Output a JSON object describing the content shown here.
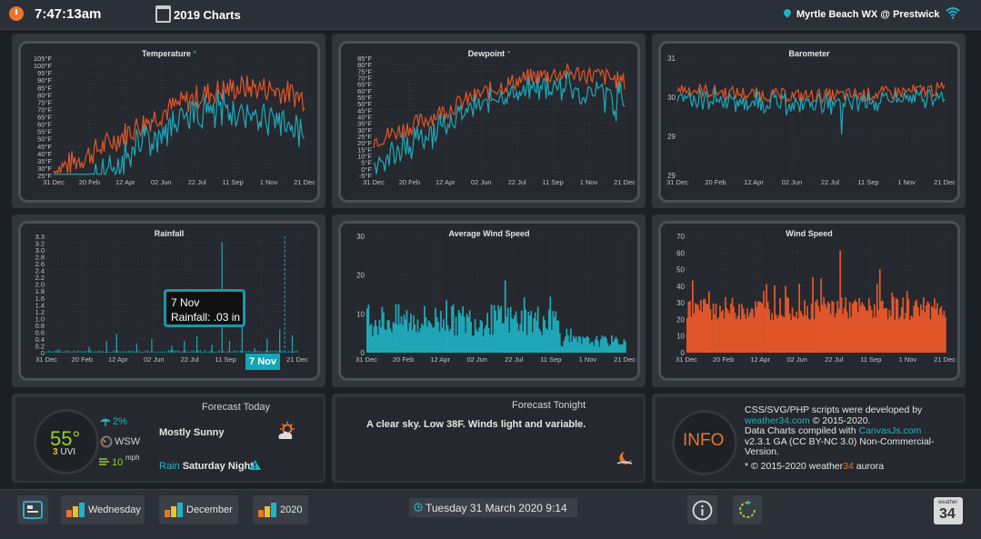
{
  "header": {
    "time": "7:47:13am",
    "title": "2019 Charts",
    "station": "Myrtle Beach WX @ Prestwick"
  },
  "charts": [
    {
      "id": "temperature",
      "title": "Temperature",
      "title_suffix": "°",
      "yticks": [
        "105°F",
        "100°F",
        "95°F",
        "90°F",
        "85°F",
        "80°F",
        "75°F",
        "70°F",
        "65°F",
        "60°F",
        "55°F",
        "50°F",
        "45°F",
        "40°F",
        "35°F",
        "30°F",
        "25°F"
      ],
      "xticks": [
        "31 Dec",
        "20 Feb",
        "12 Apr",
        "02 Jun",
        "22 Jul",
        "11 Sep",
        "1 Nov",
        "21 Dec"
      ]
    },
    {
      "id": "dewpoint",
      "title": "Dewpoint",
      "title_suffix": "°",
      "yticks": [
        "85°F",
        "80°F",
        "75°F",
        "70°F",
        "65°F",
        "60°F",
        "55°F",
        "50°F",
        "45°F",
        "40°F",
        "35°F",
        "30°F",
        "25°F",
        "20°F",
        "15°F",
        "10°F",
        "5°F",
        "0°F",
        "-5°F"
      ],
      "xticks": [
        "31 Dec",
        "20 Feb",
        "12 Apr",
        "02 Jun",
        "22 Jul",
        "11 Sep",
        "1 Nov",
        "21 Dec"
      ]
    },
    {
      "id": "barometer",
      "title": "Barometer",
      "title_suffix": "",
      "yticks": [
        "31",
        "30",
        "29",
        "29"
      ],
      "xticks": [
        "31 Dec",
        "20 Feb",
        "12 Apr",
        "02 Jun",
        "22 Jul",
        "11 Sep",
        "1 Nov",
        "21 Dec"
      ]
    },
    {
      "id": "rainfall",
      "title": "Rainfall",
      "title_suffix": "",
      "yticks": [
        "3.3",
        "3.2",
        "3.0",
        "2.8",
        "2.6",
        "2.4",
        "2.2",
        "2.0",
        "1.8",
        "1.6",
        "1.4",
        "1.2",
        "1.0",
        "0.8",
        "0.6",
        "0.4",
        "0.2",
        "0"
      ],
      "xticks": [
        "31 Dec",
        "20 Feb",
        "12 Apr",
        "02 Jun",
        "22 Jul",
        "11 Sep",
        "1 Nov",
        "21 Dec"
      ]
    },
    {
      "id": "avgwind",
      "title": "Average Wind Speed",
      "title_suffix": "",
      "yticks": [
        "30",
        "20",
        "10",
        "0"
      ],
      "xticks": [
        "31 Dec",
        "20 Feb",
        "12 Apr",
        "02 Jun",
        "22 Jul",
        "11 Sep",
        "1 Nov",
        "21 Dec"
      ]
    },
    {
      "id": "windspeed",
      "title": "Wind Speed",
      "title_suffix": "",
      "yticks": [
        "70",
        "60",
        "50",
        "40",
        "30",
        "20",
        "10",
        "0"
      ],
      "xticks": [
        "31 Dec",
        "20 Feb",
        "12 Apr",
        "02 Jun",
        "22 Jul",
        "11 Sep",
        "1 Nov",
        "21 Dec"
      ]
    }
  ],
  "tooltip": {
    "date": "7 Nov",
    "line": "Rainfall:  .03 in",
    "axis_label": "7 Nov"
  },
  "forecast_today": {
    "title": "Forecast Today",
    "temp": "55°",
    "uv_value": "3",
    "uv_label": "UVI",
    "precip": "2%",
    "wind_dir": "WSW",
    "wind_speed": "10",
    "wind_unit": "mph",
    "summary": "Mostly Sunny",
    "rain_label": "Rain",
    "rain_when": "Saturday Night"
  },
  "forecast_tonight": {
    "title": "Forecast Tonight",
    "text": "A clear sky. Low 38F. Winds light and variable."
  },
  "credits": {
    "badge": "INFO",
    "line1": "CSS/SVG/PHP scripts were developed by",
    "site": "weather34.com",
    "copy1": "© 2015-2020.",
    "line2": "Data Charts compiled with",
    "canvas": "CanvasJs.com",
    "line3": "v2.3.1 GA (CC BY-NC 3.0) Non-Commercial-Version.",
    "line4_pre": "* © 2015-2020 weather",
    "line4_brand": "34",
    "line4_post": " aurora"
  },
  "footer": {
    "btn_wednesday": "Wednesday",
    "btn_december": "December",
    "btn_2020": "2020",
    "datetime": "Tuesday 31 March 2020 9:14",
    "logo_small": "weather",
    "logo_big": "34"
  },
  "colors": {
    "orange": "#e0552a",
    "teal": "#1fa7b8",
    "card_bg": "#25282e",
    "accent": "#12a6b8"
  }
}
